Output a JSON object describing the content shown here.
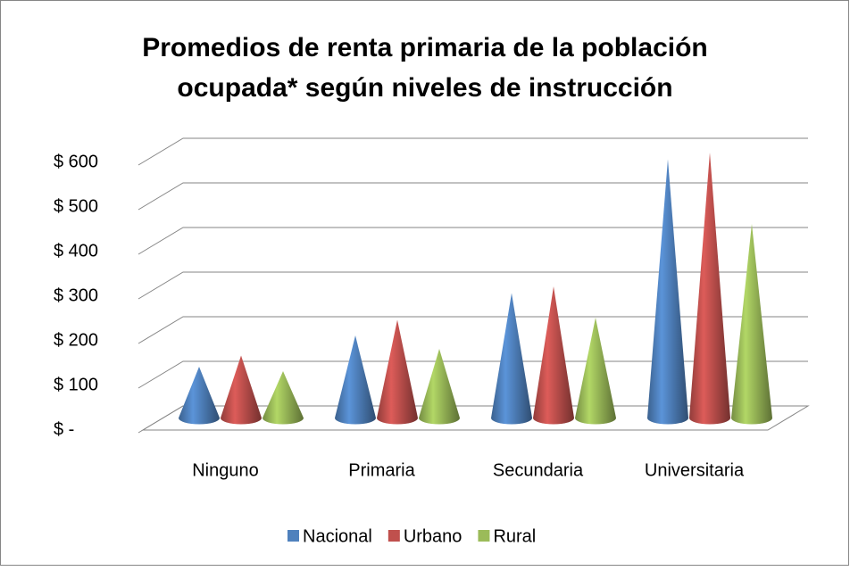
{
  "chart_data": {
    "type": "bar",
    "title": "Promedios de renta primaria de la población ocupada* según niveles de instrucción",
    "categories": [
      "Ninguno",
      "Primaria",
      "Secundaria",
      "Universitaria"
    ],
    "series": [
      {
        "name": "Nacional",
        "color": "#4f81bd",
        "values": [
          115,
          185,
          280,
          580
        ]
      },
      {
        "name": "Urbano",
        "color": "#c0504d",
        "values": [
          140,
          220,
          295,
          595
        ]
      },
      {
        "name": "Rural",
        "color": "#9bbb59",
        "values": [
          105,
          155,
          225,
          435
        ]
      }
    ],
    "ylim": [
      0,
      600
    ],
    "yticks": [
      {
        "value": 0,
        "label": "$ -"
      },
      {
        "value": 100,
        "label": "$ 100"
      },
      {
        "value": 200,
        "label": "$ 200"
      },
      {
        "value": 300,
        "label": "$ 300"
      },
      {
        "value": 400,
        "label": "$ 400"
      },
      {
        "value": 500,
        "label": "$ 500"
      },
      {
        "value": 600,
        "label": "$ 600"
      }
    ],
    "grid": true,
    "legend": "bottom"
  }
}
